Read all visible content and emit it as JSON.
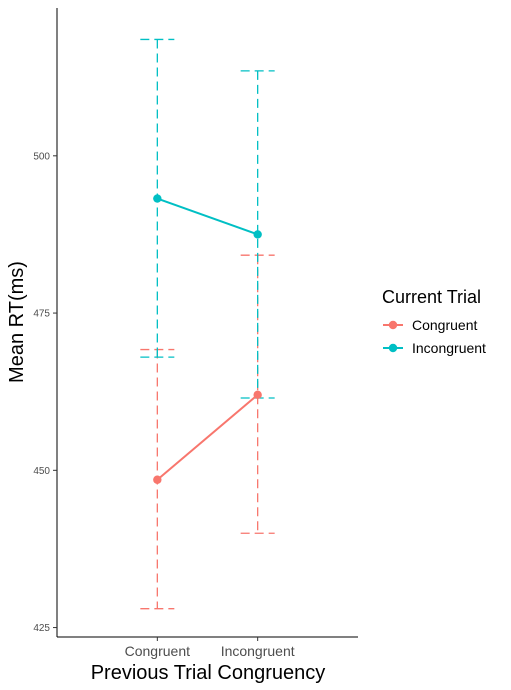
{
  "chart_data": {
    "type": "line",
    "title": "",
    "xlabel": "Previous Trial Congruency",
    "ylabel": "Mean RT(ms)",
    "categories": [
      "Congruent",
      "Incongruent"
    ],
    "ylim": [
      423.5,
      523.5
    ],
    "yticks": [
      425,
      450,
      475,
      500
    ],
    "grid": false,
    "legend": {
      "title": "Current Trial",
      "position": "right"
    },
    "series": [
      {
        "name": "Congruent",
        "color": "#F8766D",
        "values": [
          448.5,
          462.0
        ],
        "error_low": [
          428.0,
          440.0
        ],
        "error_high": [
          469.2,
          484.2
        ]
      },
      {
        "name": "Incongruent",
        "color": "#00BFC4",
        "values": [
          493.2,
          487.5
        ],
        "error_low": [
          468.0,
          461.5
        ],
        "error_high": [
          518.5,
          513.5
        ]
      }
    ]
  }
}
